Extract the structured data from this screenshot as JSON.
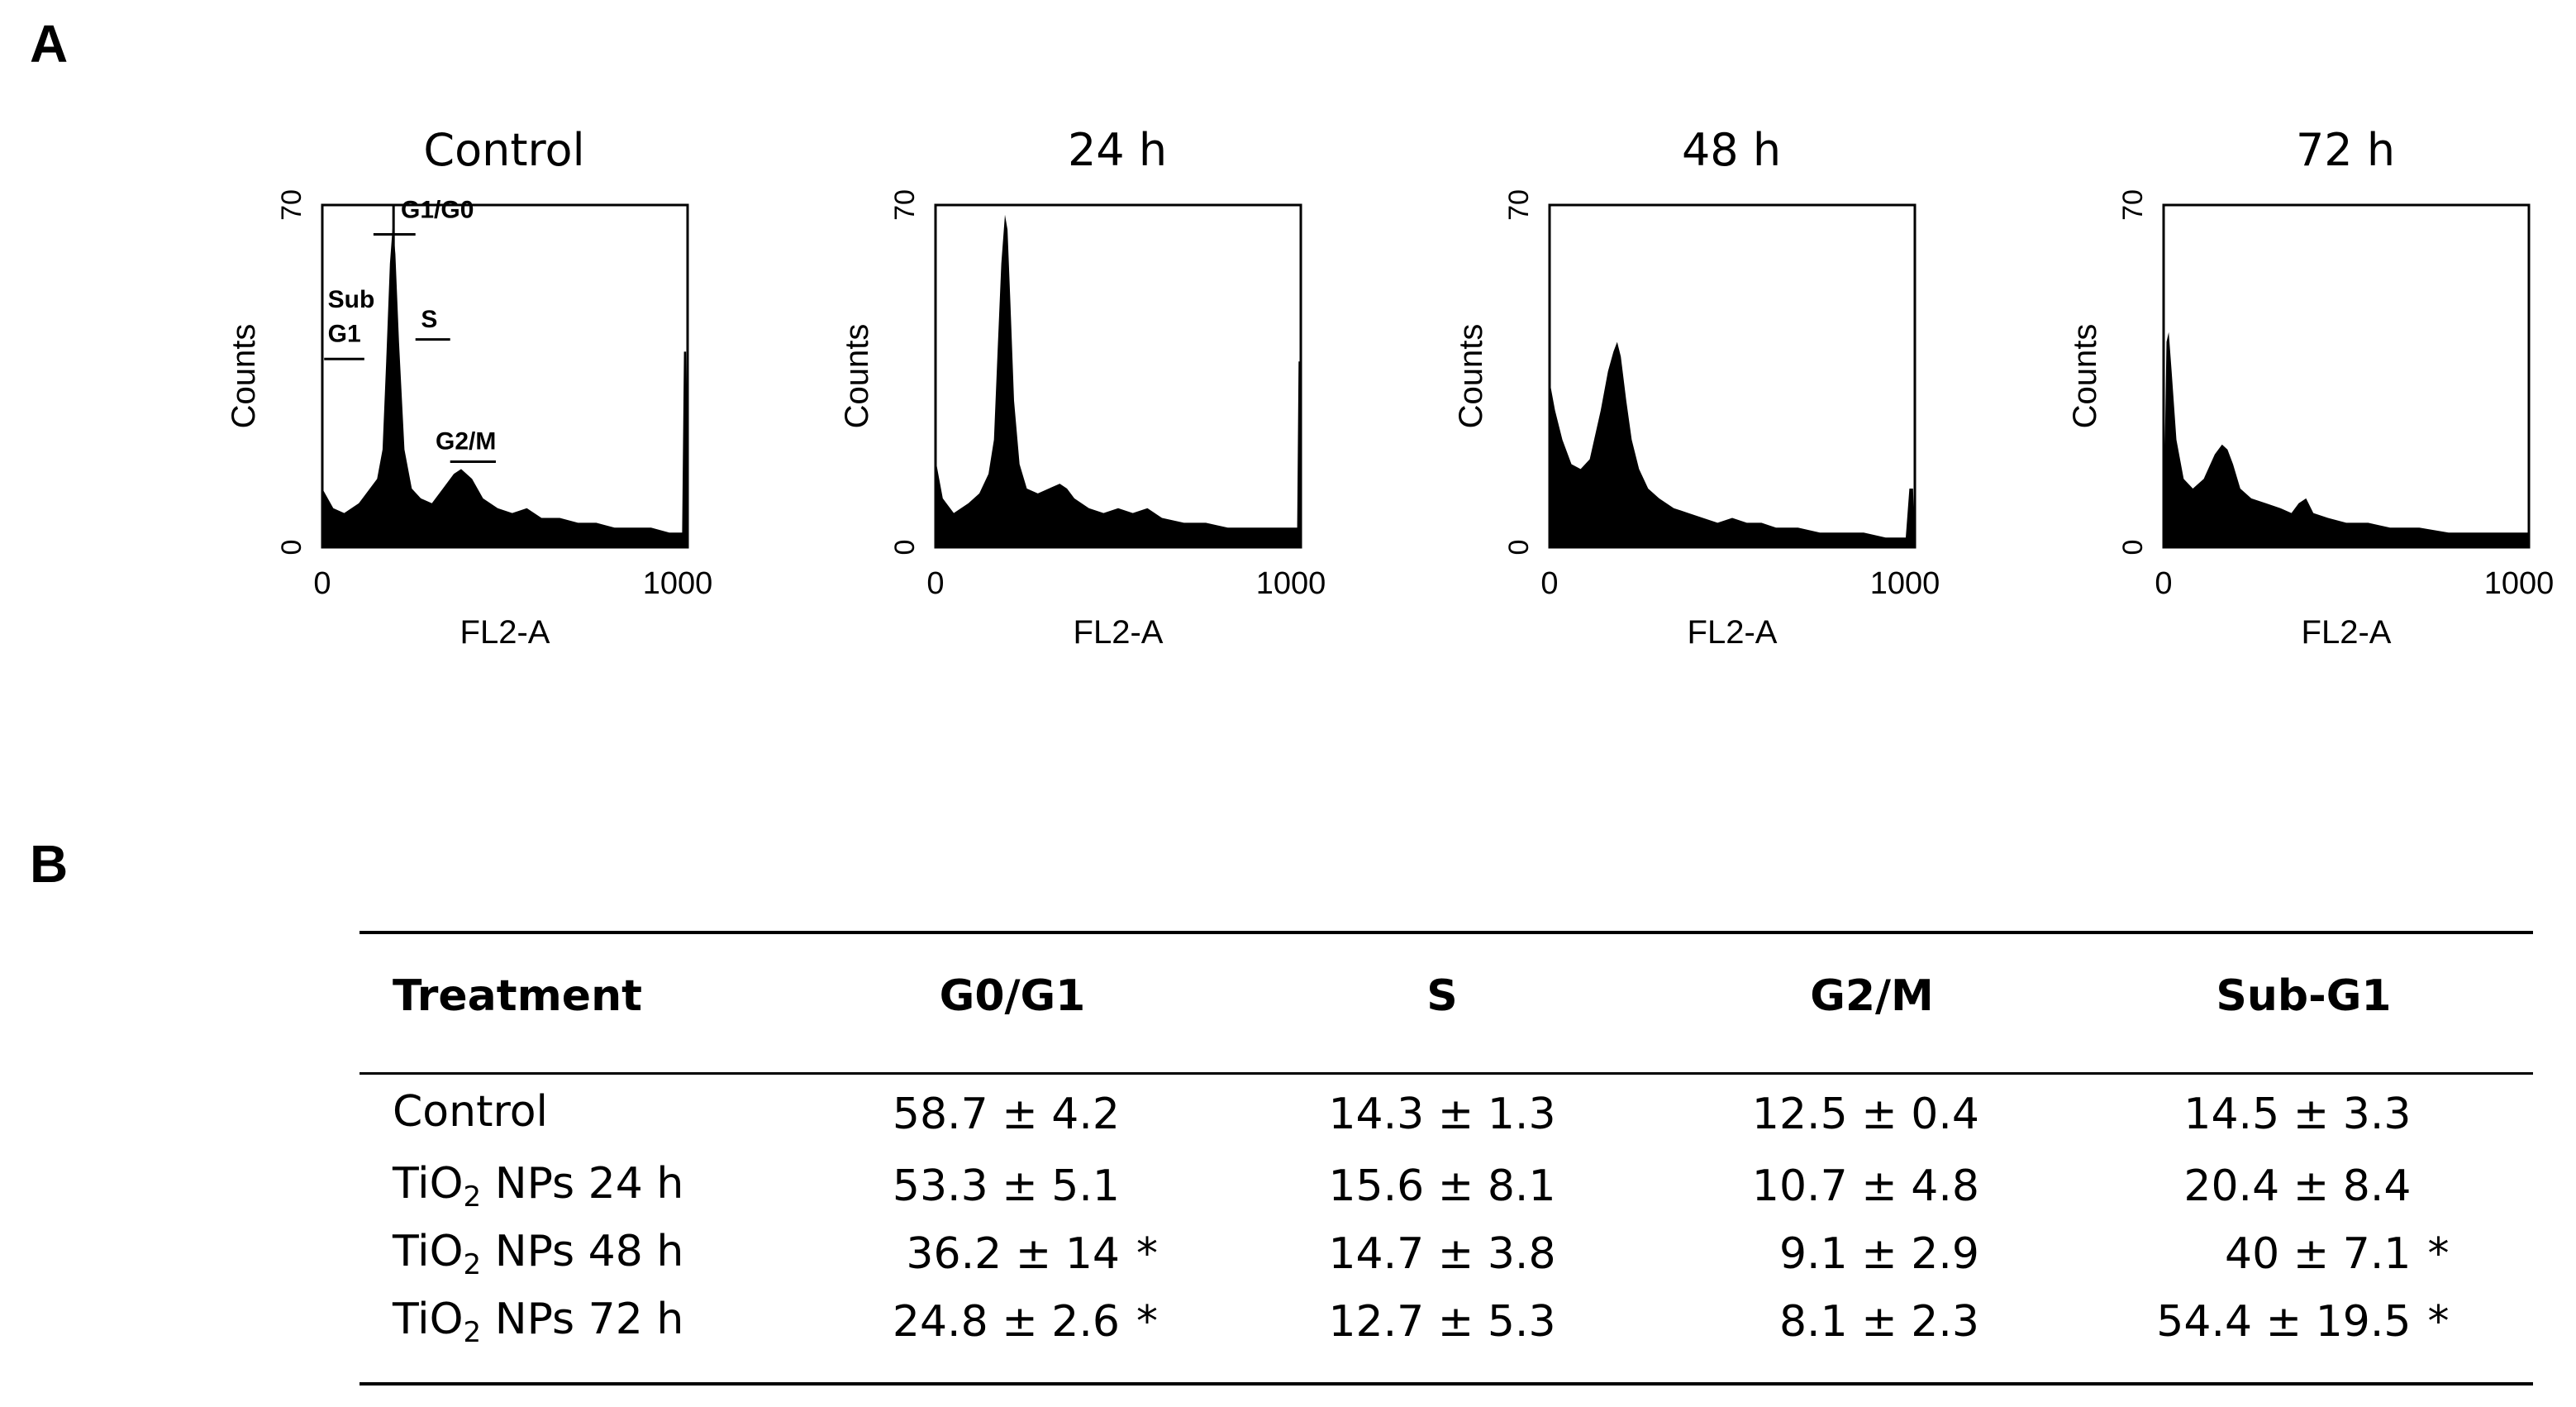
{
  "panel_a_label": "A",
  "panel_b_label": "B",
  "chart_data": [
    {
      "type": "histogram",
      "title": "Control",
      "xlabel": "FL2-A",
      "ylabel": "Counts",
      "xlim": [
        0,
        1000
      ],
      "ylim": [
        0,
        70
      ],
      "x_ticks": [
        "0",
        "1000"
      ],
      "y_ticks": [
        "0",
        "70"
      ],
      "annotations": [
        "G1/G0",
        "Sub",
        "G1",
        "S",
        "G2/M"
      ],
      "profile": [
        [
          0,
          12
        ],
        [
          30,
          8
        ],
        [
          60,
          7
        ],
        [
          100,
          9
        ],
        [
          130,
          12
        ],
        [
          150,
          14
        ],
        [
          165,
          20
        ],
        [
          175,
          38
        ],
        [
          185,
          58
        ],
        [
          193,
          66
        ],
        [
          200,
          60
        ],
        [
          210,
          42
        ],
        [
          225,
          20
        ],
        [
          245,
          12
        ],
        [
          270,
          10
        ],
        [
          300,
          9
        ],
        [
          330,
          12
        ],
        [
          360,
          15
        ],
        [
          380,
          16
        ],
        [
          410,
          14
        ],
        [
          440,
          10
        ],
        [
          480,
          8
        ],
        [
          520,
          7
        ],
        [
          560,
          8
        ],
        [
          600,
          6
        ],
        [
          650,
          6
        ],
        [
          700,
          5
        ],
        [
          750,
          5
        ],
        [
          800,
          4
        ],
        [
          850,
          4
        ],
        [
          900,
          4
        ],
        [
          950,
          3
        ],
        [
          985,
          3
        ],
        [
          990,
          40
        ],
        [
          996,
          40
        ],
        [
          1000,
          0
        ]
      ]
    },
    {
      "type": "histogram",
      "title": "24 h",
      "xlabel": "FL2-A",
      "ylabel": "Counts",
      "xlim": [
        0,
        1000
      ],
      "ylim": [
        0,
        70
      ],
      "x_ticks": [
        "0",
        "1000"
      ],
      "y_ticks": [
        "0",
        "70"
      ],
      "annotations": [],
      "profile": [
        [
          0,
          18
        ],
        [
          20,
          10
        ],
        [
          50,
          7
        ],
        [
          90,
          9
        ],
        [
          120,
          11
        ],
        [
          145,
          15
        ],
        [
          160,
          22
        ],
        [
          170,
          40
        ],
        [
          180,
          58
        ],
        [
          190,
          68
        ],
        [
          197,
          65
        ],
        [
          205,
          50
        ],
        [
          215,
          30
        ],
        [
          230,
          17
        ],
        [
          250,
          12
        ],
        [
          280,
          11
        ],
        [
          310,
          12
        ],
        [
          340,
          13
        ],
        [
          360,
          12
        ],
        [
          380,
          10
        ],
        [
          420,
          8
        ],
        [
          460,
          7
        ],
        [
          500,
          8
        ],
        [
          540,
          7
        ],
        [
          580,
          8
        ],
        [
          620,
          6
        ],
        [
          680,
          5
        ],
        [
          740,
          5
        ],
        [
          800,
          4
        ],
        [
          860,
          4
        ],
        [
          920,
          4
        ],
        [
          970,
          4
        ],
        [
          990,
          4
        ],
        [
          994,
          38
        ],
        [
          1000,
          38
        ],
        [
          1000,
          0
        ]
      ]
    },
    {
      "type": "histogram",
      "title": "48 h",
      "xlabel": "FL2-A",
      "ylabel": "Counts",
      "xlim": [
        0,
        1000
      ],
      "ylim": [
        0,
        70
      ],
      "x_ticks": [
        "0",
        "1000"
      ],
      "y_ticks": [
        "0",
        "70"
      ],
      "annotations": [],
      "profile": [
        [
          0,
          34
        ],
        [
          15,
          28
        ],
        [
          35,
          22
        ],
        [
          60,
          17
        ],
        [
          85,
          16
        ],
        [
          110,
          18
        ],
        [
          140,
          28
        ],
        [
          160,
          36
        ],
        [
          175,
          40
        ],
        [
          185,
          42
        ],
        [
          195,
          39
        ],
        [
          210,
          30
        ],
        [
          225,
          22
        ],
        [
          245,
          16
        ],
        [
          270,
          12
        ],
        [
          300,
          10
        ],
        [
          340,
          8
        ],
        [
          380,
          7
        ],
        [
          420,
          6
        ],
        [
          460,
          5
        ],
        [
          500,
          6
        ],
        [
          540,
          5
        ],
        [
          580,
          5
        ],
        [
          620,
          4
        ],
        [
          680,
          4
        ],
        [
          740,
          3
        ],
        [
          800,
          3
        ],
        [
          860,
          3
        ],
        [
          920,
          2
        ],
        [
          975,
          2
        ],
        [
          985,
          12
        ],
        [
          995,
          12
        ],
        [
          1000,
          0
        ]
      ]
    },
    {
      "type": "histogram",
      "title": "72 h",
      "xlabel": "FL2-A",
      "ylabel": "Counts",
      "xlim": [
        0,
        1000
      ],
      "ylim": [
        0,
        70
      ],
      "x_ticks": [
        "0",
        "1000"
      ],
      "y_ticks": [
        "0",
        "70"
      ],
      "annotations": [],
      "profile": [
        [
          0,
          5
        ],
        [
          8,
          42
        ],
        [
          14,
          44
        ],
        [
          22,
          36
        ],
        [
          35,
          22
        ],
        [
          55,
          14
        ],
        [
          80,
          12
        ],
        [
          110,
          14
        ],
        [
          140,
          19
        ],
        [
          160,
          21
        ],
        [
          175,
          20
        ],
        [
          190,
          17
        ],
        [
          210,
          12
        ],
        [
          240,
          10
        ],
        [
          280,
          9
        ],
        [
          320,
          8
        ],
        [
          350,
          7
        ],
        [
          370,
          9
        ],
        [
          390,
          10
        ],
        [
          410,
          7
        ],
        [
          450,
          6
        ],
        [
          500,
          5
        ],
        [
          560,
          5
        ],
        [
          620,
          4
        ],
        [
          700,
          4
        ],
        [
          780,
          3
        ],
        [
          860,
          3
        ],
        [
          940,
          3
        ],
        [
          1000,
          3
        ],
        [
          1000,
          0
        ]
      ]
    }
  ],
  "table": {
    "headers": [
      "Treatment",
      "G0/G1",
      "S",
      "G2/M",
      "Sub-G1"
    ],
    "rows": [
      {
        "treatment": {
          "pre": "Control",
          "sub": "",
          "post": ""
        },
        "g0g1": "58.7 ± 4.2",
        "g0g1_sig": "",
        "s": "14.3 ± 1.3",
        "g2m": "12.5 ± 0.4",
        "subg1": "14.5 ± 3.3",
        "subg1_sig": ""
      },
      {
        "treatment": {
          "pre": "TiO",
          "sub": "2",
          "post": " NPs 24 h"
        },
        "g0g1": "53.3 ± 5.1",
        "g0g1_sig": "",
        "s": "15.6 ± 8.1",
        "g2m": "10.7 ± 4.8",
        "subg1": "20.4 ± 8.4",
        "subg1_sig": ""
      },
      {
        "treatment": {
          "pre": "TiO",
          "sub": "2",
          "post": " NPs 48 h"
        },
        "g0g1": "36.2 ± 14",
        "g0g1_sig": "*",
        "s": "14.7 ± 3.8",
        "g2m": "9.1 ± 2.9",
        "subg1": "40 ± 7.1",
        "subg1_sig": "*"
      },
      {
        "treatment": {
          "pre": "TiO",
          "sub": "2",
          "post": " NPs 72 h"
        },
        "g0g1": "24.8 ± 2.6",
        "g0g1_sig": "*",
        "s": "12.7 ± 5.3",
        "g2m": "8.1 ± 2.3",
        "subg1": "54.4 ± 19.5",
        "subg1_sig": "*"
      }
    ]
  }
}
